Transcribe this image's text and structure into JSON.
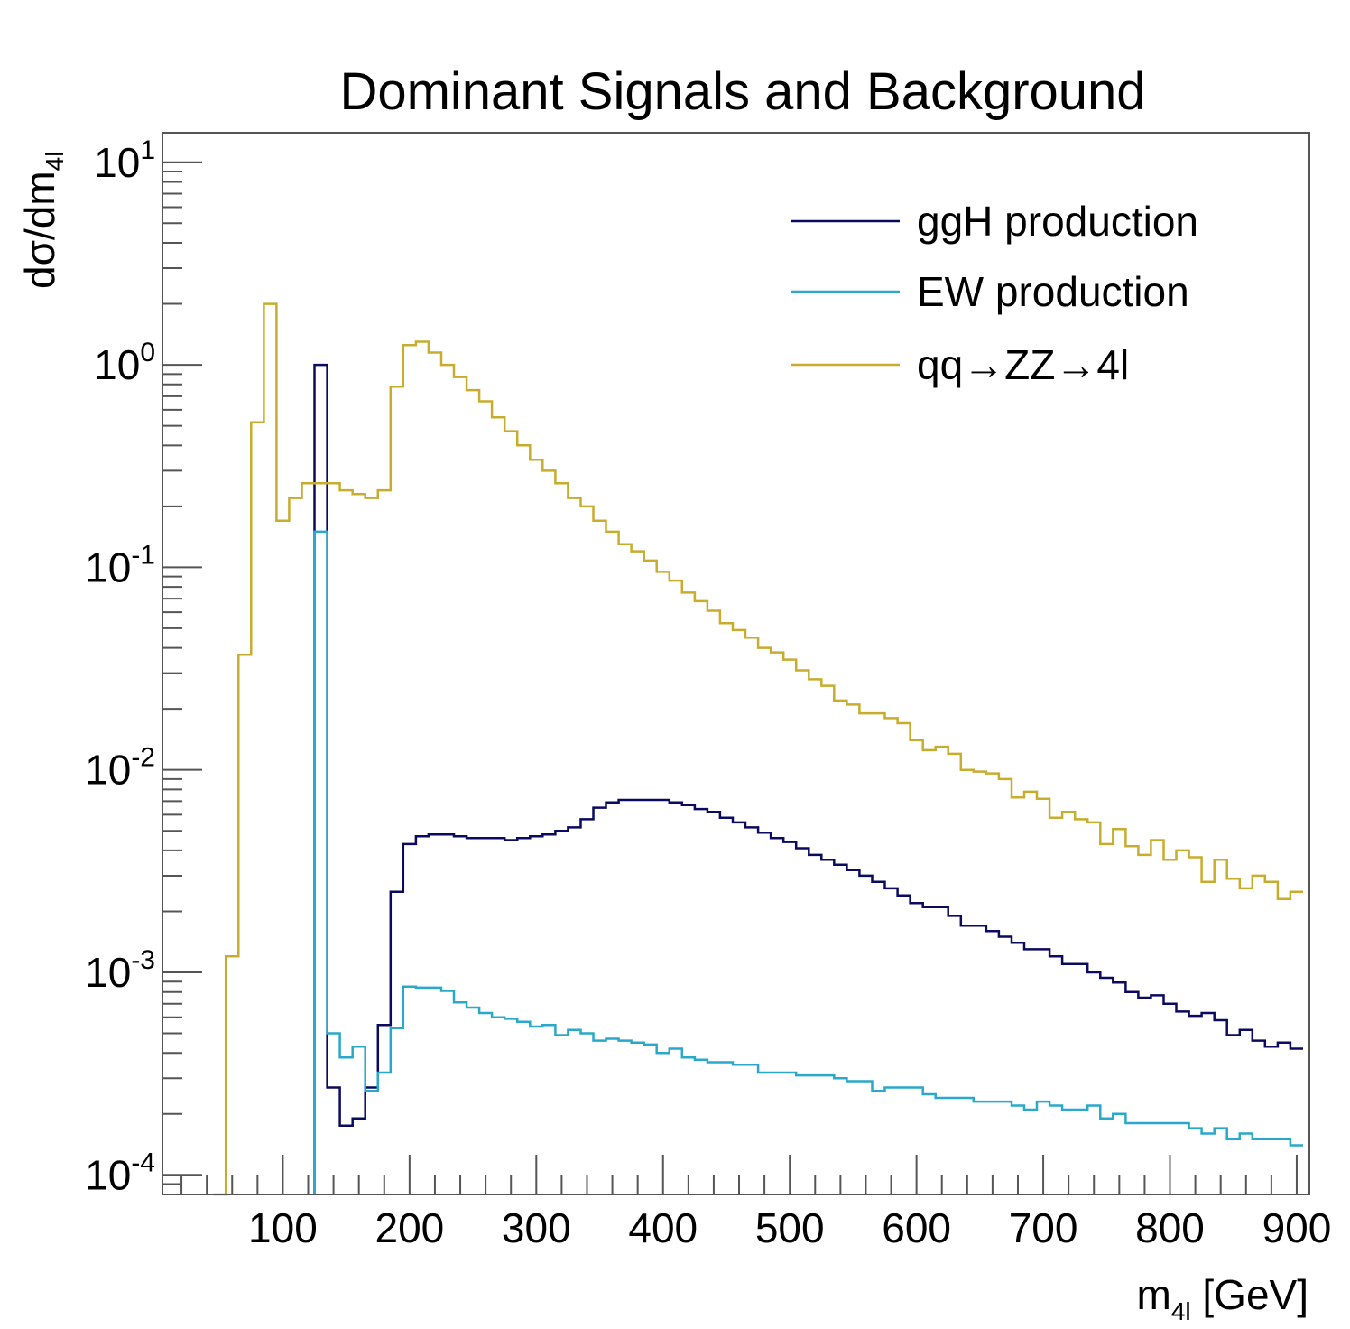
{
  "chart_data": {
    "type": "line",
    "style": "step histogram",
    "title": "Dominant Signals and Background",
    "xlabel": {
      "main": "m",
      "sub": "4l",
      "unit": " [GeV]"
    },
    "ylabel": {
      "main": "dσ/dm",
      "sub": "4l"
    },
    "xlim": [
      5,
      910
    ],
    "ylim": [
      8e-05,
      14
    ],
    "yscale": "log",
    "bin_width": 10,
    "x_start": 5,
    "grid": false,
    "legend_position": "top-right",
    "x_ticks": [
      100,
      200,
      300,
      400,
      500,
      600,
      700,
      800,
      900
    ],
    "x_tick_labels": [
      "100",
      "200",
      "300",
      "400",
      "500",
      "600",
      "700",
      "800",
      "900"
    ],
    "y_ticks": [
      {
        "value": 0.0001,
        "base": "10",
        "exp": "-4"
      },
      {
        "value": 0.001,
        "base": "10",
        "exp": "-3"
      },
      {
        "value": 0.01,
        "base": "10",
        "exp": "-2"
      },
      {
        "value": 0.1,
        "base": "10",
        "exp": "-1"
      },
      {
        "value": 1,
        "base": "10",
        "exp": "0"
      },
      {
        "value": 10,
        "base": "10",
        "exp": "1"
      }
    ],
    "series": [
      {
        "name": "ggH production",
        "color": "#0a0a5e",
        "values": [
          0,
          0,
          0,
          0,
          0,
          0,
          0,
          0,
          0,
          0,
          0,
          0,
          1.0,
          0.00027,
          0.000175,
          0.00019,
          0.00027,
          0.00055,
          0.0025,
          0.0043,
          0.0047,
          0.0048,
          0.0048,
          0.0047,
          0.0046,
          0.0046,
          0.0046,
          0.0045,
          0.0046,
          0.0047,
          0.0048,
          0.005,
          0.0052,
          0.0057,
          0.0065,
          0.0069,
          0.0071,
          0.0071,
          0.0071,
          0.0071,
          0.0069,
          0.0067,
          0.0064,
          0.0062,
          0.0058,
          0.0055,
          0.0052,
          0.0049,
          0.0046,
          0.0044,
          0.0041,
          0.0038,
          0.0036,
          0.0034,
          0.0032,
          0.003,
          0.0028,
          0.0026,
          0.0024,
          0.0022,
          0.0021,
          0.0021,
          0.0019,
          0.0017,
          0.0017,
          0.0016,
          0.0015,
          0.0014,
          0.0013,
          0.0013,
          0.0012,
          0.0011,
          0.0011,
          0.001,
          0.00094,
          0.00089,
          0.0008,
          0.00075,
          0.00077,
          0.0007,
          0.00064,
          0.00061,
          0.00063,
          0.00058,
          0.00049,
          0.00052,
          0.00046,
          0.00043,
          0.00045,
          0.00042
        ]
      },
      {
        "name": "EW production",
        "color": "#29a8c9",
        "values": [
          0,
          0,
          0,
          0,
          0,
          0,
          0,
          0,
          0,
          0,
          0,
          0,
          0.15,
          0.0005,
          0.00038,
          0.00043,
          0.00026,
          0.00032,
          0.00053,
          0.00085,
          0.00084,
          0.00084,
          0.00081,
          0.00071,
          0.00067,
          0.00063,
          0.0006,
          0.00059,
          0.00057,
          0.00054,
          0.00055,
          0.00049,
          0.00052,
          0.0005,
          0.00046,
          0.00047,
          0.00046,
          0.00045,
          0.00044,
          0.0004,
          0.00042,
          0.00038,
          0.00037,
          0.00036,
          0.00036,
          0.00035,
          0.00035,
          0.00032,
          0.00032,
          0.00032,
          0.00031,
          0.00031,
          0.00031,
          0.0003,
          0.00029,
          0.00029,
          0.00026,
          0.00027,
          0.00027,
          0.00027,
          0.00025,
          0.00024,
          0.00024,
          0.00024,
          0.00023,
          0.00023,
          0.00023,
          0.00022,
          0.00021,
          0.00023,
          0.00022,
          0.00021,
          0.00021,
          0.00022,
          0.00019,
          0.0002,
          0.00018,
          0.00018,
          0.00018,
          0.00018,
          0.00018,
          0.00017,
          0.00016,
          0.00017,
          0.00015,
          0.00016,
          0.00015,
          0.00015,
          0.00015,
          0.00014
        ]
      },
      {
        "name": "qq→ZZ→4l",
        "color": "#c8ac2e",
        "values": [
          0,
          0,
          0,
          0,
          6.2e-05,
          0.0012,
          0.037,
          0.52,
          2.0,
          0.17,
          0.22,
          0.26,
          0.26,
          0.26,
          0.24,
          0.23,
          0.22,
          0.24,
          0.78,
          1.25,
          1.3,
          1.15,
          1.0,
          0.87,
          0.75,
          0.66,
          0.55,
          0.47,
          0.4,
          0.34,
          0.3,
          0.26,
          0.22,
          0.2,
          0.17,
          0.15,
          0.13,
          0.12,
          0.108,
          0.095,
          0.086,
          0.075,
          0.068,
          0.061,
          0.053,
          0.049,
          0.045,
          0.04,
          0.038,
          0.035,
          0.031,
          0.028,
          0.026,
          0.022,
          0.021,
          0.019,
          0.019,
          0.018,
          0.017,
          0.014,
          0.0125,
          0.013,
          0.012,
          0.01,
          0.0098,
          0.0096,
          0.009,
          0.0073,
          0.0078,
          0.0072,
          0.0058,
          0.0062,
          0.0057,
          0.0055,
          0.0043,
          0.0051,
          0.0042,
          0.0038,
          0.0045,
          0.0036,
          0.004,
          0.0037,
          0.0028,
          0.0036,
          0.0029,
          0.0026,
          0.003,
          0.0028,
          0.0023,
          0.0025
        ]
      }
    ]
  }
}
